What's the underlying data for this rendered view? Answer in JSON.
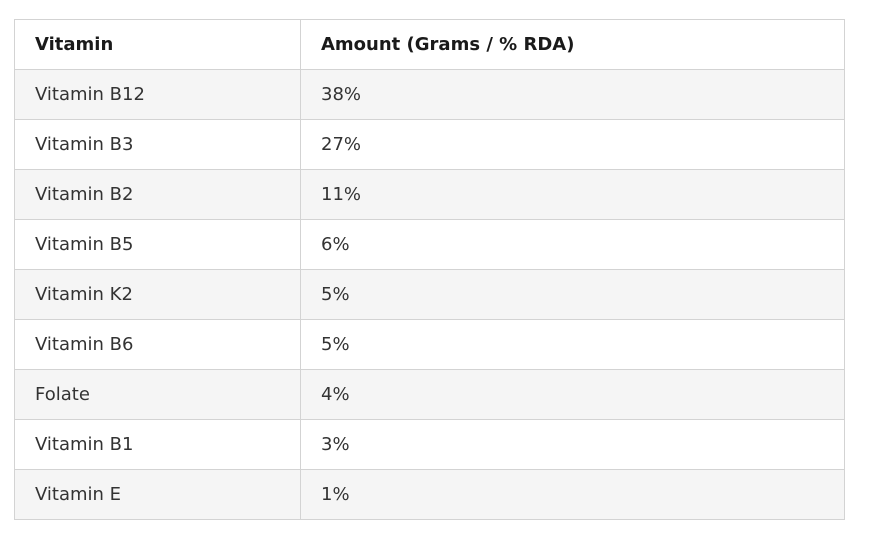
{
  "table": {
    "headers": [
      "Vitamin",
      "Amount (Grams / % RDA)"
    ],
    "rows": [
      [
        "Vitamin B12",
        "38%"
      ],
      [
        "Vitamin B3",
        "27%"
      ],
      [
        "Vitamin B2",
        "11%"
      ],
      [
        "Vitamin B5",
        "6%"
      ],
      [
        "Vitamin K2",
        "5%"
      ],
      [
        "Vitamin B6",
        "5%"
      ],
      [
        "Folate",
        "4%"
      ],
      [
        "Vitamin B1",
        "3%"
      ],
      [
        "Vitamin E",
        "1%"
      ]
    ]
  },
  "colors": {
    "border": "#d3d3d3",
    "row_alt": "#f5f5f5",
    "text": "#333333",
    "header_text": "#1a1a1a"
  }
}
